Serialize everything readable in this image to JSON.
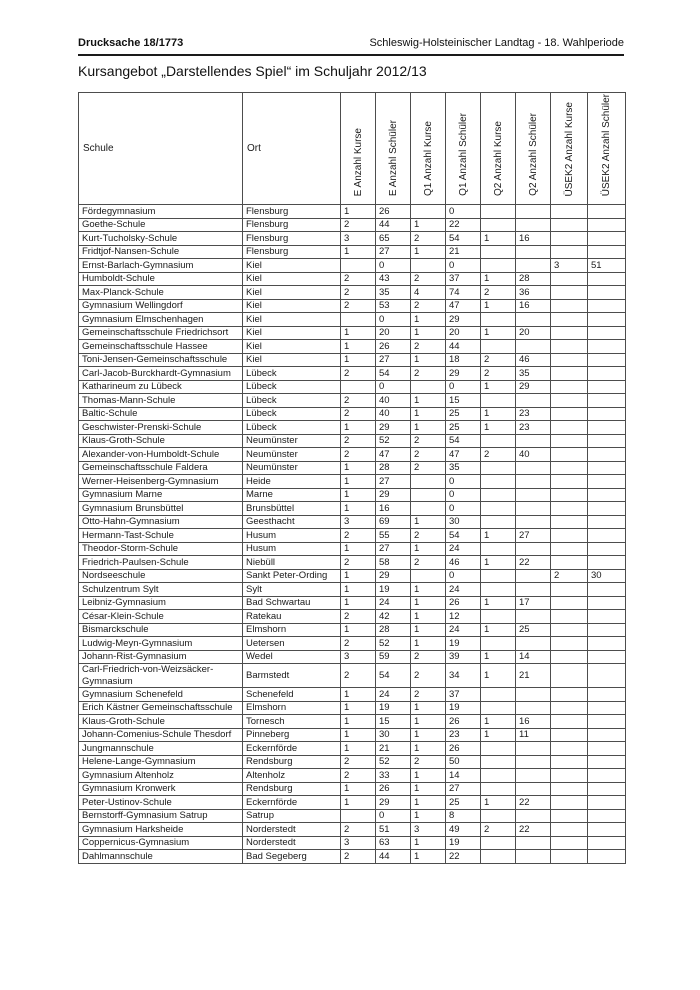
{
  "header": {
    "doc_number": "Drucksache 18/1773",
    "parliament": "Schleswig-Holsteinischer Landtag - 18. Wahlperiode"
  },
  "title": "Kursangebot „Darstellendes Spiel“ im Schuljahr 2012/13",
  "colors": {
    "page_background": "#ffffff",
    "text": "#1a1a1a",
    "table_border": "#4d4d4d"
  },
  "table": {
    "columns": [
      "Schule",
      "Ort",
      "E Anzahl Kurse",
      "E Anzahl Schüler",
      "Q1 Anzahl Kurse",
      "Q1 Anzahl Schüler",
      "Q2 Anzahl Kurse",
      "Q2 Anzahl Schüler",
      "ÜSEK2 Anzahl Kurse",
      "ÜSEK2 Anzahl Schüler"
    ],
    "rows": [
      [
        "Fördegymnasium",
        "Flensburg",
        "1",
        "26",
        "",
        "0",
        "",
        "",
        "",
        ""
      ],
      [
        "Goethe-Schule",
        "Flensburg",
        "2",
        "44",
        "1",
        "22",
        "",
        "",
        "",
        ""
      ],
      [
        "Kurt-Tucholsky-Schule",
        "Flensburg",
        "3",
        "65",
        "2",
        "54",
        "1",
        "16",
        "",
        ""
      ],
      [
        "Fridtjof-Nansen-Schule",
        "Flensburg",
        "1",
        "27",
        "1",
        "21",
        "",
        "",
        "",
        ""
      ],
      [
        "Ernst-Barlach-Gymnasium",
        "Kiel",
        "",
        "0",
        "",
        "0",
        "",
        "",
        "3",
        "51"
      ],
      [
        "Humboldt-Schule",
        "Kiel",
        "2",
        "43",
        "2",
        "37",
        "1",
        "28",
        "",
        ""
      ],
      [
        "Max-Planck-Schule",
        "Kiel",
        "2",
        "35",
        "4",
        "74",
        "2",
        "36",
        "",
        ""
      ],
      [
        "Gymnasium Wellingdorf",
        "Kiel",
        "2",
        "53",
        "2",
        "47",
        "1",
        "16",
        "",
        ""
      ],
      [
        "Gymnasium Elmschenhagen",
        "Kiel",
        "",
        "0",
        "1",
        "29",
        "",
        "",
        "",
        ""
      ],
      [
        "Gemeinschaftsschule Friedrichsort",
        "Kiel",
        "1",
        "20",
        "1",
        "20",
        "1",
        "20",
        "",
        ""
      ],
      [
        "Gemeinschaftsschule Hassee",
        "Kiel",
        "1",
        "26",
        "2",
        "44",
        "",
        "",
        "",
        ""
      ],
      [
        "Toni-Jensen-Gemeinschaftsschule",
        "Kiel",
        "1",
        "27",
        "1",
        "18",
        "2",
        "46",
        "",
        ""
      ],
      [
        "Carl-Jacob-Burckhardt-Gymnasium",
        "Lübeck",
        "2",
        "54",
        "2",
        "29",
        "2",
        "35",
        "",
        ""
      ],
      [
        "Katharineum zu Lübeck",
        "Lübeck",
        "",
        "0",
        "",
        "0",
        "1",
        "29",
        "",
        ""
      ],
      [
        "Thomas-Mann-Schule",
        "Lübeck",
        "2",
        "40",
        "1",
        "15",
        "",
        "",
        "",
        ""
      ],
      [
        "Baltic-Schule",
        "Lübeck",
        "2",
        "40",
        "1",
        "25",
        "1",
        "23",
        "",
        ""
      ],
      [
        "Geschwister-Prenski-Schule",
        "Lübeck",
        "1",
        "29",
        "1",
        "25",
        "1",
        "23",
        "",
        ""
      ],
      [
        "Klaus-Groth-Schule",
        "Neumünster",
        "2",
        "52",
        "2",
        "54",
        "",
        "",
        "",
        ""
      ],
      [
        "Alexander-von-Humboldt-Schule",
        "Neumünster",
        "2",
        "47",
        "2",
        "47",
        "2",
        "40",
        "",
        ""
      ],
      [
        "Gemeinschaftsschule Faldera",
        "Neumünster",
        "1",
        "28",
        "2",
        "35",
        "",
        "",
        "",
        ""
      ],
      [
        "Werner-Heisenberg-Gymnasium",
        "Heide",
        "1",
        "27",
        "",
        "0",
        "",
        "",
        "",
        ""
      ],
      [
        "Gymnasium Marne",
        "Marne",
        "1",
        "29",
        "",
        "0",
        "",
        "",
        "",
        ""
      ],
      [
        "Gymnasium Brunsbüttel",
        "Brunsbüttel",
        "1",
        "16",
        "",
        "0",
        "",
        "",
        "",
        ""
      ],
      [
        "Otto-Hahn-Gymnasium",
        "Geesthacht",
        "3",
        "69",
        "1",
        "30",
        "",
        "",
        "",
        ""
      ],
      [
        "Hermann-Tast-Schule",
        "Husum",
        "2",
        "55",
        "2",
        "54",
        "1",
        "27",
        "",
        ""
      ],
      [
        "Theodor-Storm-Schule",
        "Husum",
        "1",
        "27",
        "1",
        "24",
        "",
        "",
        "",
        ""
      ],
      [
        "Friedrich-Paulsen-Schule",
        "Niebüll",
        "2",
        "58",
        "2",
        "46",
        "1",
        "22",
        "",
        ""
      ],
      [
        "Nordseeschule",
        "Sankt Peter-Ording",
        "1",
        "29",
        "",
        "0",
        "",
        "",
        "2",
        "30"
      ],
      [
        "Schulzentrum Sylt",
        "Sylt",
        "1",
        "19",
        "1",
        "24",
        "",
        "",
        "",
        ""
      ],
      [
        "Leibniz-Gymnasium",
        "Bad Schwartau",
        "1",
        "24",
        "1",
        "26",
        "1",
        "17",
        "",
        ""
      ],
      [
        "César-Klein-Schule",
        "Ratekau",
        "2",
        "42",
        "1",
        "12",
        "",
        "",
        "",
        ""
      ],
      [
        "Bismarckschule",
        "Elmshorn",
        "1",
        "28",
        "1",
        "24",
        "1",
        "25",
        "",
        ""
      ],
      [
        "Ludwig-Meyn-Gymnasium",
        "Uetersen",
        "2",
        "52",
        "1",
        "19",
        "",
        "",
        "",
        ""
      ],
      [
        "Johann-Rist-Gymnasium",
        "Wedel",
        "3",
        "59",
        "2",
        "39",
        "1",
        "14",
        "",
        ""
      ],
      [
        "Carl-Friedrich-von-Weizsäcker-Gymnasium",
        "Barmstedt",
        "2",
        "54",
        "2",
        "34",
        "1",
        "21",
        "",
        ""
      ],
      [
        "Gymnasium Schenefeld",
        "Schenefeld",
        "1",
        "24",
        "2",
        "37",
        "",
        "",
        "",
        ""
      ],
      [
        "Erich Kästner Gemeinschaftsschule",
        "Elmshorn",
        "1",
        "19",
        "1",
        "19",
        "",
        "",
        "",
        ""
      ],
      [
        "Klaus-Groth-Schule",
        "Tornesch",
        "1",
        "15",
        "1",
        "26",
        "1",
        "16",
        "",
        ""
      ],
      [
        "Johann-Comenius-Schule Thesdorf",
        "Pinneberg",
        "1",
        "30",
        "1",
        "23",
        "1",
        "11",
        "",
        ""
      ],
      [
        "Jungmannschule",
        "Eckernförde",
        "1",
        "21",
        "1",
        "26",
        "",
        "",
        "",
        ""
      ],
      [
        "Helene-Lange-Gymnasium",
        "Rendsburg",
        "2",
        "52",
        "2",
        "50",
        "",
        "",
        "",
        ""
      ],
      [
        "Gymnasium Altenholz",
        "Altenholz",
        "2",
        "33",
        "1",
        "14",
        "",
        "",
        "",
        ""
      ],
      [
        "Gymnasium Kronwerk",
        "Rendsburg",
        "1",
        "26",
        "1",
        "27",
        "",
        "",
        "",
        ""
      ],
      [
        "Peter-Ustinov-Schule",
        "Eckernförde",
        "1",
        "29",
        "1",
        "25",
        "1",
        "22",
        "",
        ""
      ],
      [
        "Bernstorff-Gymnasium Satrup",
        "Satrup",
        "",
        "0",
        "1",
        "8",
        "",
        "",
        "",
        ""
      ],
      [
        "Gymnasium Harksheide",
        "Norderstedt",
        "2",
        "51",
        "3",
        "49",
        "2",
        "22",
        "",
        ""
      ],
      [
        "Coppernicus-Gymnasium",
        "Norderstedt",
        "3",
        "63",
        "1",
        "19",
        "",
        "",
        "",
        ""
      ],
      [
        "Dahlmannschule",
        "Bad Segeberg",
        "2",
        "44",
        "1",
        "22",
        "",
        "",
        "",
        ""
      ]
    ]
  }
}
